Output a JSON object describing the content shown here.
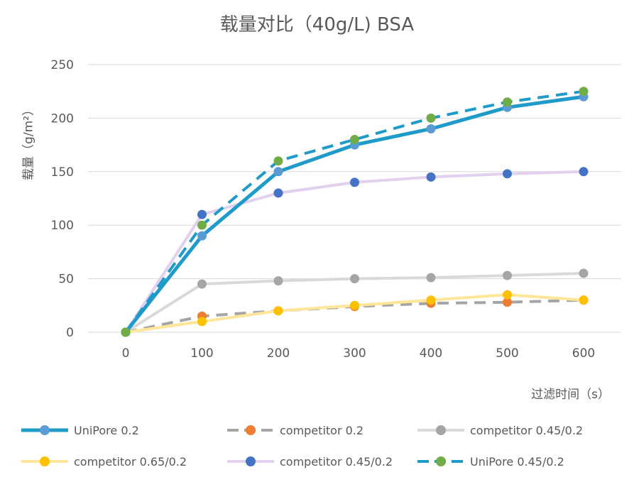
{
  "chart_data": {
    "type": "line",
    "title": "载量对比（40g/L) BSA",
    "xlabel": "过滤时间（s）",
    "ylabel": "载量（g/m²）",
    "x": [
      0,
      100,
      200,
      300,
      400,
      500,
      600
    ],
    "x_tick_labels": [
      "0",
      "100",
      "200",
      "300",
      "400",
      "500",
      "600"
    ],
    "y_tick_labels": [
      "0",
      "50",
      "100",
      "150",
      "200",
      "250"
    ],
    "ylim": [
      0,
      250
    ],
    "grid": true,
    "legend_position": "bottom",
    "series": [
      {
        "name": "UniPore 0.2",
        "values": [
          0,
          90,
          150,
          175,
          190,
          210,
          220
        ],
        "line_color": "#1f9bc9",
        "marker_color": "#5b9bd5",
        "line_style": "solid",
        "line_width": 5
      },
      {
        "name": "competitor 0.2",
        "values": [
          0,
          15,
          20,
          24,
          27,
          28,
          30
        ],
        "line_color": "#a5a5a5",
        "marker_color": "#ed7d31",
        "line_style": "dashed",
        "line_width": 4
      },
      {
        "name": "competitor 0.45/0.2",
        "values": [
          0,
          45,
          48,
          50,
          51,
          53,
          55
        ],
        "line_color": "#d9d9d9",
        "marker_color": "#a5a5a5",
        "line_style": "solid",
        "line_width": 4
      },
      {
        "name": "competitor 0.65/0.2",
        "values": [
          0,
          10,
          20,
          25,
          30,
          35,
          30
        ],
        "line_color": "#ffe699",
        "marker_color": "#ffc000",
        "line_style": "solid",
        "line_width": 4
      },
      {
        "name": "competitor 0.45/0.2",
        "values": [
          0,
          110,
          130,
          140,
          145,
          148,
          150
        ],
        "line_color": "#e2d0ef",
        "marker_color": "#4472c4",
        "line_style": "solid",
        "line_width": 4
      },
      {
        "name": "UniPore 0.45/0.2",
        "values": [
          0,
          100,
          160,
          180,
          200,
          215,
          225
        ],
        "line_color": "#1f9bc9",
        "marker_color": "#70ad47",
        "line_style": "dashed",
        "line_width": 4
      }
    ]
  }
}
